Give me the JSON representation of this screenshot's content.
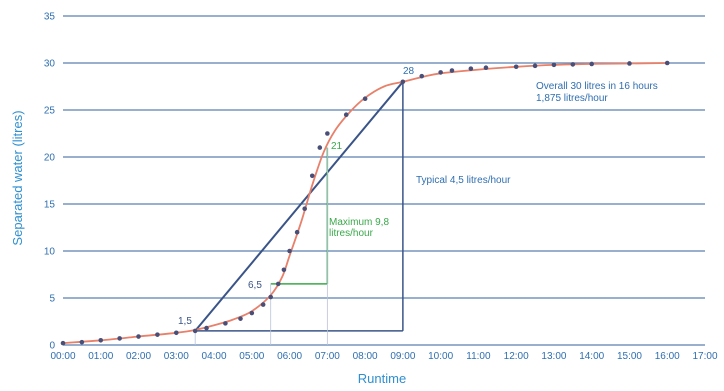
{
  "chart_data": {
    "type": "line",
    "title": "",
    "xlabel": "Runtime",
    "ylabel": "Separated water (litres)",
    "x_tick_labels": [
      "00:00",
      "01:00",
      "02:00",
      "03:00",
      "04:00",
      "05:00",
      "06:00",
      "07:00",
      "08:00",
      "09:00",
      "10:00",
      "11:00",
      "12:00",
      "13:00",
      "14:00",
      "15:00",
      "16:00",
      "17:00"
    ],
    "xlim": [
      0,
      17
    ],
    "ylim": [
      0,
      35
    ],
    "yticks": [
      0,
      5,
      10,
      15,
      20,
      25,
      30,
      35
    ],
    "grid": "horizontal",
    "colors": {
      "curve": "#e8806a",
      "points": "#4a4f78",
      "lines": "#3a5488",
      "green": "#3aa84a",
      "text_blue": "#2f6fb0",
      "grid": "#5a7fb0"
    },
    "series": [
      {
        "values_x": [
          0,
          0.5,
          1,
          1.5,
          2,
          2.5,
          3,
          3.5,
          3.8,
          4.3,
          4.7,
          5,
          5.3,
          5.5,
          5.7,
          5.85,
          6,
          6.2,
          6.4,
          6.6,
          6.8,
          7,
          7.5,
          8,
          9,
          9.5,
          10,
          10.3,
          10.8,
          11.2,
          12,
          12.5,
          13,
          13.5,
          14,
          15,
          16
        ],
        "values_y": [
          0.2,
          0.3,
          0.5,
          0.7,
          0.9,
          1.1,
          1.3,
          1.5,
          1.8,
          2.3,
          2.8,
          3.4,
          4.3,
          5.1,
          6.5,
          8,
          10,
          12,
          14.5,
          18,
          21,
          22.5,
          24.5,
          26.2,
          28,
          28.6,
          29,
          29.2,
          29.4,
          29.5,
          29.6,
          29.7,
          29.8,
          29.85,
          29.9,
          29.95,
          30
        ]
      }
    ],
    "curve": {
      "x": [
        0,
        1,
        2,
        3,
        3.5,
        4,
        4.5,
        5,
        5.5,
        5.8,
        6,
        6.3,
        6.6,
        6.9,
        7.2,
        7.6,
        8,
        8.5,
        9,
        9.5,
        10,
        11,
        12,
        13,
        14,
        15,
        16
      ],
      "y": [
        0.2,
        0.5,
        0.9,
        1.3,
        1.6,
        2.1,
        2.7,
        3.6,
        5.3,
        7.2,
        9.5,
        13,
        17,
        20.5,
        22.8,
        24.8,
        26.3,
        27.5,
        28,
        28.5,
        28.9,
        29.3,
        29.6,
        29.8,
        29.9,
        29.95,
        30
      ]
    },
    "annotations": {
      "p1": "1,5",
      "p2": "6,5",
      "p3": "21",
      "p4": "28",
      "typical": "Typical 4,5 litres/hour",
      "maximum_line1": "Maximum 9,8",
      "maximum_line2": "litres/hour",
      "overall_line1": "Overall 30 litres in 16 hours",
      "overall_line2": "1,875 litres/hour"
    }
  }
}
